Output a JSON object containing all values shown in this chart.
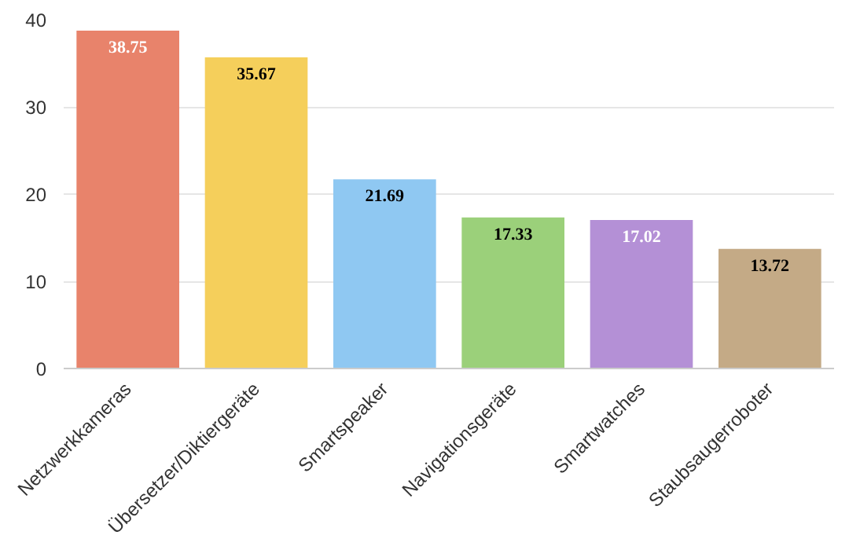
{
  "chart_data": {
    "type": "bar",
    "categories": [
      "Netzwerkkameras",
      "Übersetzer/Diktiergeräte",
      "Smartspeaker",
      "Navigationsgeräte",
      "Smartwatches",
      "Staubsaugerroboter"
    ],
    "values": [
      38.75,
      35.67,
      21.69,
      17.33,
      17.02,
      13.72
    ],
    "colors": [
      "#e8836b",
      "#f5cf5b",
      "#8fc8f2",
      "#9bd07a",
      "#b490d6",
      "#c4aa86"
    ],
    "ylim": [
      0,
      40
    ],
    "yticks": [
      0,
      10,
      20,
      30,
      40
    ],
    "grid": "y",
    "data_labels": true
  }
}
